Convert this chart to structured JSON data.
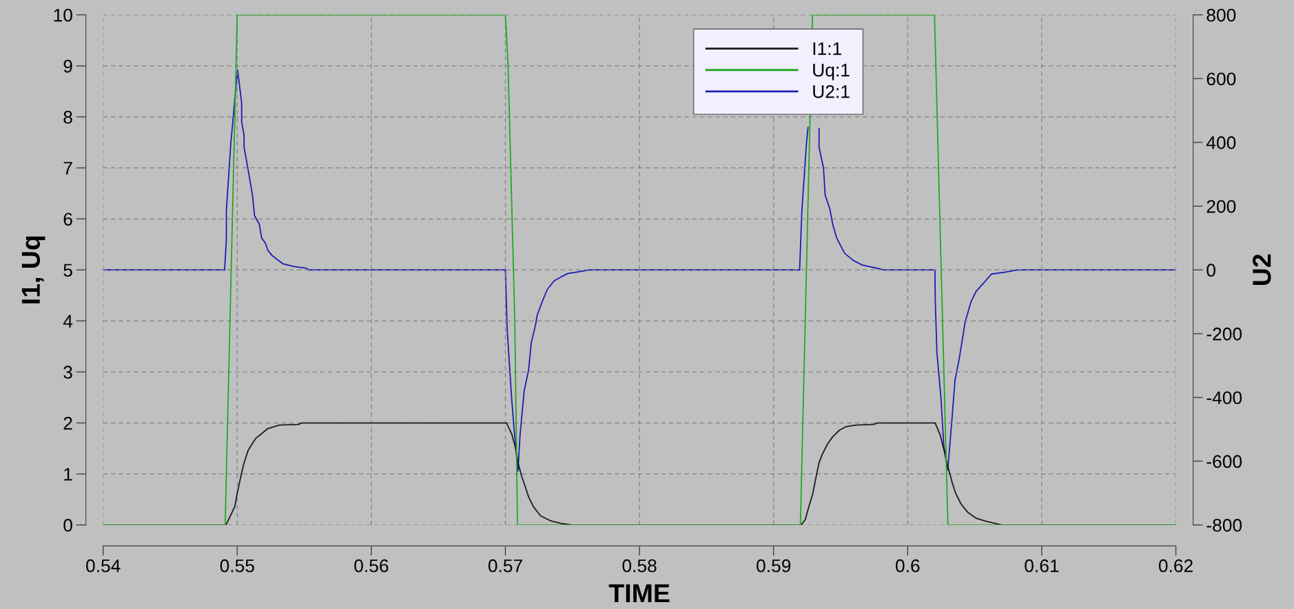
{
  "chart_data": {
    "type": "line",
    "xlabel": "TIME",
    "ylabel": "I1, Uq",
    "y2label": "U2",
    "xlim": [
      0.54,
      0.62
    ],
    "xticks": [
      0.54,
      0.55,
      0.56,
      0.57,
      0.58,
      0.59,
      0.6,
      0.61,
      0.62
    ],
    "ylim": [
      0,
      10
    ],
    "yticks": [
      0,
      1,
      2,
      3,
      4,
      5,
      6,
      7,
      8,
      9,
      10
    ],
    "y2lim": [
      -800,
      800
    ],
    "y2ticks": [
      -800,
      -600,
      -400,
      -200,
      0,
      200,
      400,
      600,
      800
    ],
    "grid": true,
    "legend": "top",
    "marker": "none",
    "line_style": "solid",
    "series": [
      {
        "name": "I1:1",
        "color": "#1a1a1a",
        "x": [
          0.54,
          0.54916,
          0.54949,
          0.54982,
          0.55,
          0.5503,
          0.55051,
          0.55081,
          0.55114,
          0.55139,
          0.55177,
          0.55228,
          0.55316,
          0.55456,
          0.55481,
          0.57008,
          0.57046,
          0.57071,
          0.57097,
          0.57122,
          0.57148,
          0.57173,
          0.57211,
          0.57262,
          0.57338,
          0.57415,
          0.57499,
          0.59206,
          0.59237,
          0.59262,
          0.59293,
          0.59313,
          0.59339,
          0.59364,
          0.59403,
          0.59441,
          0.59492,
          0.59543,
          0.59619,
          0.59746,
          0.59772,
          0.60205,
          0.60243,
          0.60269,
          0.60302,
          0.60333,
          0.60358,
          0.60396,
          0.60447,
          0.60511,
          0.60587,
          0.60702,
          0.62
        ],
        "values": [
          0,
          0,
          0.18,
          0.36,
          0.62,
          0.99,
          1.22,
          1.46,
          1.6,
          1.7,
          1.78,
          1.89,
          1.96,
          1.97,
          2.0,
          2.0,
          1.79,
          1.56,
          1.19,
          0.95,
          0.75,
          0.55,
          0.35,
          0.18,
          0.08,
          0.03,
          0,
          0,
          0.11,
          0.35,
          0.62,
          0.89,
          1.22,
          1.39,
          1.59,
          1.73,
          1.86,
          1.93,
          1.96,
          1.97,
          2.0,
          2.0,
          1.76,
          1.49,
          1.12,
          0.82,
          0.62,
          0.42,
          0.25,
          0.13,
          0.07,
          0,
          0
        ]
      },
      {
        "name": "Uq:1",
        "color": "#22a822",
        "x": [
          0.54,
          0.5491,
          0.55,
          0.57,
          0.5702,
          0.5705,
          0.5707,
          0.5709,
          0.592,
          0.5929,
          0.602,
          0.6022,
          0.603,
          0.62
        ],
        "values": [
          0,
          0,
          10,
          10,
          9,
          6,
          4,
          0,
          0,
          10,
          10,
          8,
          0,
          0
        ]
      },
      {
        "name": "U2:1",
        "color": "#1c1cb4",
        "axis": "y2",
        "x": [
          0.54,
          0.54906,
          0.54919,
          0.54919,
          0.54952,
          0.54987,
          0.55003,
          0.55033,
          0.55033,
          0.55051,
          0.55051,
          0.55081,
          0.55114,
          0.55129,
          0.55165,
          0.55182,
          0.5521,
          0.55228,
          0.55258,
          0.55291,
          0.55342,
          0.55418,
          0.55519,
          0.55532,
          0.57,
          0.57013,
          0.57046,
          0.57064,
          0.57094,
          0.57109,
          0.5714,
          0.57173,
          0.57193,
          0.57224,
          0.57237,
          0.57275,
          0.57313,
          0.57364,
          0.57415,
          0.57466,
          0.57517,
          0.57631,
          0.59194,
          0.59211,
          0.59245,
          0.59257,
          0.593,
          0.59339,
          0.59339,
          0.59372,
          0.59385,
          0.5942,
          0.59441,
          0.59471,
          0.59504,
          0.5953,
          0.59594,
          0.59657,
          0.59708,
          0.59823,
          0.60203,
          0.60206,
          0.60218,
          0.60248,
          0.60269,
          0.60299,
          0.60332,
          0.60353,
          0.60383,
          0.60429,
          0.60473,
          0.60511,
          0.60575,
          0.60625,
          0.60715,
          0.60822,
          0.62
        ],
        "values": [
          0,
          0,
          95,
          186,
          396,
          557,
          627,
          524,
          465,
          422,
          385,
          315,
          234,
          170,
          143,
          100,
          84,
          62,
          46,
          35,
          19,
          11,
          5,
          0,
          0,
          -185,
          -400,
          -496,
          -631,
          -519,
          -379,
          -314,
          -228,
          -174,
          -142,
          -99,
          -61,
          -34,
          -22,
          -11,
          -8,
          0,
          0,
          186,
          396,
          447,
          null,
          444,
          385,
          320,
          234,
          191,
          143,
          100,
          73,
          52,
          30,
          16,
          11,
          0,
          0,
          -99,
          -260,
          -400,
          -550,
          -628,
          -459,
          -346,
          -282,
          -163,
          -99,
          -67,
          -37,
          -13,
          -8,
          0,
          0
        ]
      }
    ]
  }
}
